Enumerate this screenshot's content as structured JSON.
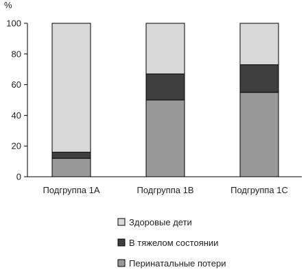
{
  "chart_data": {
    "type": "bar",
    "stacked": true,
    "title": "",
    "xlabel": "",
    "ylabel": "%",
    "ylim": [
      0,
      100
    ],
    "yticks": [
      0,
      20,
      40,
      60,
      80,
      100
    ],
    "grid": false,
    "legend_position": "bottom-center",
    "categories": [
      "Подгруппа 1A",
      "Подгруппа 1B",
      "Подгруппа 1C"
    ],
    "series": [
      {
        "name": "Перинатальные потери",
        "color": "#999999",
        "values": [
          12,
          50,
          55
        ]
      },
      {
        "name": "В тяжелом состоянии",
        "color": "#3f3f3f",
        "values": [
          4,
          17,
          18
        ]
      },
      {
        "name": "Здоровые дети",
        "color": "#d9d9d9",
        "values": [
          84,
          33,
          27
        ]
      }
    ],
    "legend_order": [
      "Здоровые дети",
      "В тяжелом состоянии",
      "Перинатальные потери"
    ]
  }
}
